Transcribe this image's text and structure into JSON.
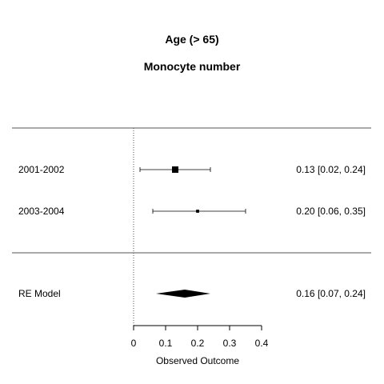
{
  "chart_data": {
    "type": "forest",
    "title": "Age (> 65)",
    "subtitle": "Monocyte number",
    "xlabel": "Observed Outcome",
    "xlim": [
      0,
      0.4
    ],
    "xticks": [
      0,
      0.1,
      0.2,
      0.3,
      0.4
    ],
    "xtick_labels": [
      "0",
      "0.1",
      "0.2",
      "0.3",
      "0.4"
    ],
    "reference_line": 0,
    "studies": [
      {
        "label": "2001-2002",
        "estimate": 0.13,
        "ci_low": 0.02,
        "ci_high": 0.24,
        "annotation": "0.13 [0.02, 0.24]",
        "weight": 1.0
      },
      {
        "label": "2003-2004",
        "estimate": 0.2,
        "ci_low": 0.06,
        "ci_high": 0.35,
        "annotation": "0.20 [0.06, 0.35]",
        "weight": 0.3
      }
    ],
    "summary": {
      "label": "RE Model",
      "estimate": 0.16,
      "ci_low": 0.07,
      "ci_high": 0.24,
      "annotation": "0.16 [0.07, 0.24]"
    }
  }
}
